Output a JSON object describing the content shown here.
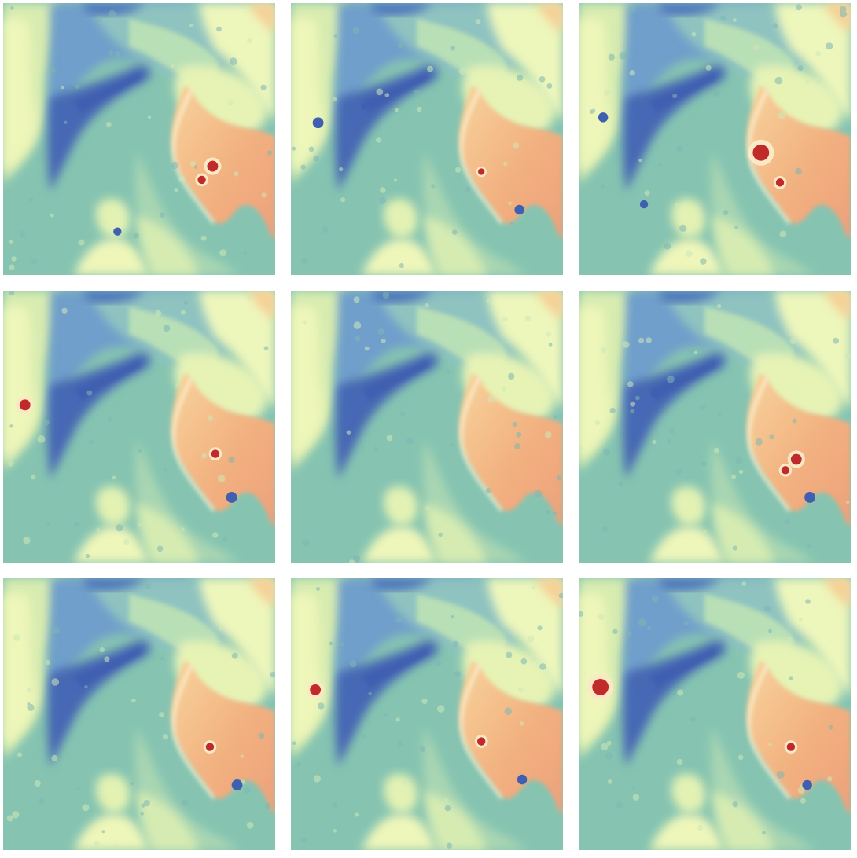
{
  "figure": {
    "rows": 3,
    "cols": 3,
    "colors": {
      "background": "#ffffff",
      "deep_blue": "#3f5fb0",
      "blue": "#5b88c3",
      "teal": "#86c4b1",
      "mint": "#b7dfb4",
      "pale_yellow": "#eef6b9",
      "peach": "#f6c58f",
      "orange": "#eea07a",
      "red": "#c02a2a"
    },
    "panels": [
      {
        "id": "panel-1",
        "hot_spots": [
          [
            0.77,
            0.6,
            0.02
          ],
          [
            0.73,
            0.65,
            0.015
          ]
        ],
        "cold_spots": [
          [
            0.42,
            0.84,
            0.015
          ]
        ]
      },
      {
        "id": "panel-2",
        "hot_spots": [
          [
            0.7,
            0.62,
            0.012
          ]
        ],
        "cold_spots": [
          [
            0.1,
            0.44,
            0.02
          ],
          [
            0.27,
            0.38,
            0.012
          ],
          [
            0.84,
            0.76,
            0.018
          ]
        ]
      },
      {
        "id": "panel-3",
        "hot_spots": [
          [
            0.67,
            0.55,
            0.03
          ],
          [
            0.74,
            0.66,
            0.015
          ]
        ],
        "cold_spots": [
          [
            0.09,
            0.42,
            0.018
          ],
          [
            0.24,
            0.74,
            0.015
          ]
        ]
      },
      {
        "id": "panel-4",
        "hot_spots": [
          [
            0.08,
            0.42,
            0.02
          ],
          [
            0.78,
            0.6,
            0.015
          ]
        ],
        "cold_spots": [
          [
            0.84,
            0.76,
            0.02
          ]
        ]
      },
      {
        "id": "panel-5",
        "hot_spots": [],
        "cold_spots": []
      },
      {
        "id": "panel-6",
        "hot_spots": [
          [
            0.8,
            0.62,
            0.02
          ],
          [
            0.76,
            0.66,
            0.015
          ]
        ],
        "cold_spots": [
          [
            0.85,
            0.76,
            0.02
          ],
          [
            0.28,
            0.38,
            0.015
          ]
        ]
      },
      {
        "id": "panel-7",
        "hot_spots": [
          [
            0.76,
            0.62,
            0.015
          ]
        ],
        "cold_spots": [
          [
            0.86,
            0.76,
            0.02
          ]
        ]
      },
      {
        "id": "panel-8",
        "hot_spots": [
          [
            0.09,
            0.41,
            0.02
          ],
          [
            0.7,
            0.6,
            0.015
          ]
        ],
        "cold_spots": [
          [
            0.85,
            0.74,
            0.018
          ]
        ]
      },
      {
        "id": "panel-9",
        "hot_spots": [
          [
            0.08,
            0.4,
            0.03
          ],
          [
            0.78,
            0.62,
            0.015
          ]
        ],
        "cold_spots": [
          [
            0.84,
            0.76,
            0.018
          ]
        ]
      }
    ]
  }
}
